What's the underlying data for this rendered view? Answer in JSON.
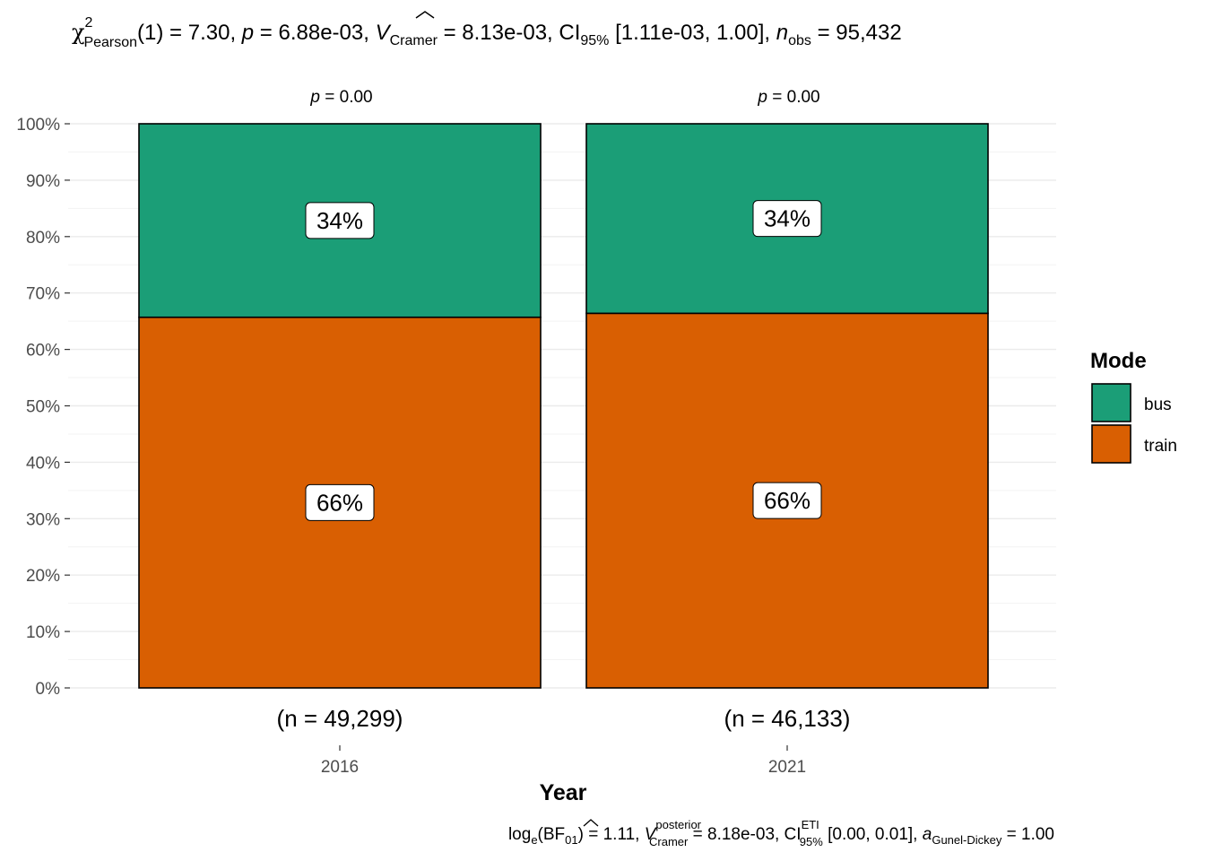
{
  "chart_data": {
    "type": "bar",
    "stacked": true,
    "title": "",
    "subtitle": {
      "chi_sub": "Pearson",
      "chi_sup": "2",
      "df_stat": "(1) = 7.30, ",
      "p_sym": "p",
      "p_val": " = 6.88e-03, ",
      "v_sym": "V",
      "v_sub": "Cramer",
      "v_val": " = 8.13e-03, CI",
      "ci_sub": "95%",
      "ci_val": " [1.11e-03, 1.00], ",
      "n_sym": "n",
      "n_sub": "obs",
      "n_val": " = 95,432"
    },
    "caption": {
      "log": "log",
      "log_sub": "e",
      "bf": "(BF",
      "bf_sub": "01",
      "bf_val": ") = 1.11, ",
      "v_sym": "V",
      "v_sup": "posterior",
      "v_sub": "Cramer",
      "v_val": " = 8.18e-03, CI",
      "ci_sup": "ETI",
      "ci_sub": "95%",
      "ci_val": " [0.00, 0.01], ",
      "a_sym": "a",
      "a_sub": "Gunel-Dickey",
      "a_val": " = 1.00"
    },
    "xlabel": "Year",
    "ylabel": "",
    "categories": [
      "2016",
      "2021"
    ],
    "y_ticks": [
      "0%",
      "10%",
      "20%",
      "30%",
      "40%",
      "50%",
      "60%",
      "70%",
      "80%",
      "90%",
      "100%"
    ],
    "ylim": [
      0,
      1
    ],
    "series": [
      {
        "name": "train",
        "color": "#d95f02",
        "values": [
          0.657,
          0.664
        ],
        "labels": [
          "66%",
          "66%"
        ]
      },
      {
        "name": "bus",
        "color": "#1b9e77",
        "values": [
          0.343,
          0.336
        ],
        "labels": [
          "34%",
          "34%"
        ]
      }
    ],
    "top_labels": [
      {
        "sym": "p",
        "val": " = 0.00"
      },
      {
        "sym": "p",
        "val": " = 0.00"
      }
    ],
    "n_labels": [
      "(n = 49,299)",
      "(n = 46,133)"
    ],
    "legend": {
      "title": "Mode",
      "position": "right",
      "items": [
        {
          "label": "bus",
          "color": "#1b9e77"
        },
        {
          "label": "train",
          "color": "#d95f02"
        }
      ]
    },
    "grid": true
  }
}
